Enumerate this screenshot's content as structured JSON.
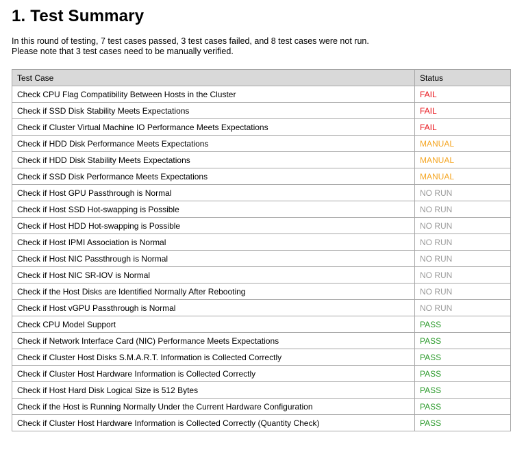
{
  "header": {
    "title": "1. Test Summary"
  },
  "intro": {
    "lines": [
      "In this round of testing, 7 test cases passed, 3 test cases failed, and 8 test cases were not run.",
      "Please note that 3 test cases need to be manually verified."
    ]
  },
  "table": {
    "columns": [
      "Test Case",
      "Status"
    ],
    "rows": [
      {
        "test_case": "Check CPU Flag Compatibility Between Hosts in the Cluster",
        "status": "FAIL",
        "color": "#e8141b"
      },
      {
        "test_case": "Check if SSD Disk Stability Meets Expectations",
        "status": "FAIL",
        "color": "#e8141b"
      },
      {
        "test_case": "Check if Cluster Virtual Machine IO Performance Meets Expectations",
        "status": "FAIL",
        "color": "#e8141b"
      },
      {
        "test_case": "Check if HDD Disk Performance Meets Expectations",
        "status": "MANUAL",
        "color": "#f5a623"
      },
      {
        "test_case": "Check if HDD Disk Stability Meets Expectations",
        "status": "MANUAL",
        "color": "#f5a623"
      },
      {
        "test_case": "Check if SSD Disk Performance Meets Expectations",
        "status": "MANUAL",
        "color": "#f5a623"
      },
      {
        "test_case": "Check if Host GPU Passthrough is Normal",
        "status": "NO RUN",
        "color": "#9a9a9a"
      },
      {
        "test_case": "Check if Host SSD Hot-swapping is Possible",
        "status": "NO RUN",
        "color": "#9a9a9a"
      },
      {
        "test_case": "Check if Host HDD Hot-swapping is Possible",
        "status": "NO RUN",
        "color": "#9a9a9a"
      },
      {
        "test_case": "Check if Host IPMI Association is Normal",
        "status": "NO RUN",
        "color": "#9a9a9a"
      },
      {
        "test_case": "Check if Host NIC Passthrough is Normal",
        "status": "NO RUN",
        "color": "#9a9a9a"
      },
      {
        "test_case": "Check if Host NIC SR-IOV is Normal",
        "status": "NO RUN",
        "color": "#9a9a9a"
      },
      {
        "test_case": "Check if the Host Disks are Identified Normally After Rebooting",
        "status": "NO RUN",
        "color": "#9a9a9a"
      },
      {
        "test_case": "Check if Host vGPU Passthrough is Normal",
        "status": "NO RUN",
        "color": "#9a9a9a"
      },
      {
        "test_case": "Check CPU Model Support",
        "status": "PASS",
        "color": "#2a9a2a"
      },
      {
        "test_case": "Check if Network Interface Card (NIC) Performance Meets Expectations",
        "status": "PASS",
        "color": "#2a9a2a"
      },
      {
        "test_case": "Check if Cluster Host Disks S.M.A.R.T. Information is Collected Correctly",
        "status": "PASS",
        "color": "#2a9a2a"
      },
      {
        "test_case": "Check if Cluster Host Hardware Information is Collected Correctly",
        "status": "PASS",
        "color": "#2a9a2a"
      },
      {
        "test_case": "Check if Host Hard Disk Logical Size is 512 Bytes",
        "status": "PASS",
        "color": "#2a9a2a"
      },
      {
        "test_case": "Check if the Host is Running Normally Under the Current Hardware Configuration",
        "status": "PASS",
        "color": "#2a9a2a"
      },
      {
        "test_case": "Check if Cluster Host Hardware Information is Collected Correctly (Quantity Check)",
        "status": "PASS",
        "color": "#2a9a2a"
      }
    ]
  }
}
